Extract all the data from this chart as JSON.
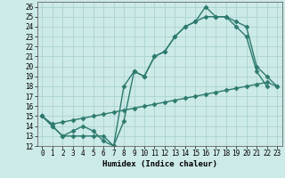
{
  "title": "",
  "xlabel": "Humidex (Indice chaleur)",
  "ylabel": "",
  "background_color": "#cceae7",
  "grid_color": "#aad4d0",
  "line_color": "#2d7a6e",
  "xlim": [
    -0.5,
    23.5
  ],
  "ylim": [
    12,
    26.5
  ],
  "xticks": [
    0,
    1,
    2,
    3,
    4,
    5,
    6,
    7,
    8,
    9,
    10,
    11,
    12,
    13,
    14,
    15,
    16,
    17,
    18,
    19,
    20,
    21,
    22,
    23
  ],
  "yticks": [
    12,
    13,
    14,
    15,
    16,
    17,
    18,
    19,
    20,
    21,
    22,
    23,
    24,
    25,
    26
  ],
  "line1_x": [
    0,
    1,
    2,
    3,
    4,
    5,
    6,
    7,
    8,
    9,
    10,
    11,
    12,
    13,
    14,
    15,
    16,
    17,
    18,
    19,
    20,
    21,
    22
  ],
  "line1_y": [
    15,
    14,
    13,
    13,
    13,
    13,
    13,
    12,
    18,
    19.5,
    19,
    21,
    21.5,
    23,
    24,
    24.5,
    26,
    25,
    25,
    24,
    23,
    19.5,
    18
  ],
  "line2_x": [
    0,
    1,
    2,
    3,
    4,
    5,
    6,
    7,
    8,
    9,
    10,
    11,
    12,
    13,
    14,
    15,
    16,
    17,
    18,
    19,
    20,
    21,
    22,
    23
  ],
  "line2_y": [
    15,
    14,
    13,
    13.5,
    14,
    13.5,
    12.5,
    12,
    14.5,
    19.5,
    19,
    21,
    21.5,
    23,
    24,
    24.5,
    25,
    25,
    25,
    24.5,
    24,
    20,
    19,
    18
  ],
  "line3_x": [
    0,
    1,
    2,
    3,
    4,
    5,
    6,
    7,
    8,
    9,
    10,
    11,
    12,
    13,
    14,
    15,
    16,
    17,
    18,
    19,
    20,
    21,
    22,
    23
  ],
  "line3_y": [
    15,
    14.2,
    14.4,
    14.6,
    14.8,
    15,
    15.2,
    15.4,
    15.6,
    15.8,
    16,
    16.2,
    16.4,
    16.6,
    16.8,
    17,
    17.2,
    17.4,
    17.6,
    17.8,
    18,
    18.2,
    18.4,
    18.0
  ]
}
